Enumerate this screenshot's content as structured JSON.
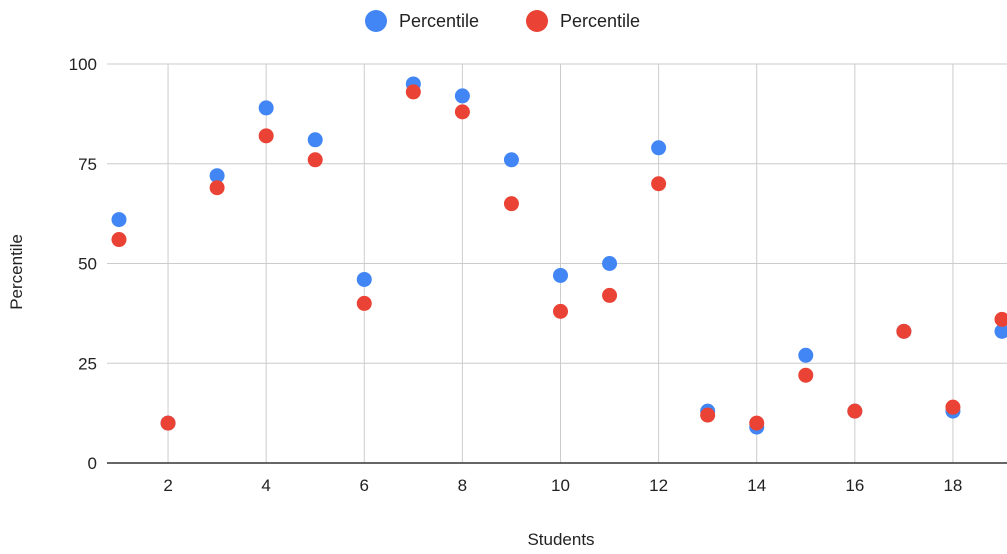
{
  "chart_data": {
    "type": "scatter",
    "title": "",
    "xlabel": "Students",
    "ylabel": "Percentile",
    "xlim": [
      1,
      19
    ],
    "ylim": [
      0,
      100
    ],
    "x_ticks": [
      2,
      4,
      6,
      8,
      10,
      12,
      14,
      16,
      18
    ],
    "y_ticks": [
      0,
      25,
      50,
      75,
      100
    ],
    "grid": true,
    "legend_position": "top-center",
    "series": [
      {
        "name": "Percentile",
        "color": "#4285f4",
        "points": [
          {
            "x": 1,
            "y": 61
          },
          {
            "x": 2,
            "y": 10
          },
          {
            "x": 3,
            "y": 72
          },
          {
            "x": 4,
            "y": 89
          },
          {
            "x": 5,
            "y": 81
          },
          {
            "x": 6,
            "y": 46
          },
          {
            "x": 7,
            "y": 95
          },
          {
            "x": 8,
            "y": 92
          },
          {
            "x": 9,
            "y": 76
          },
          {
            "x": 10,
            "y": 47
          },
          {
            "x": 11,
            "y": 50
          },
          {
            "x": 12,
            "y": 79
          },
          {
            "x": 13,
            "y": 13
          },
          {
            "x": 14,
            "y": 9
          },
          {
            "x": 15,
            "y": 27
          },
          {
            "x": 16,
            "y": 13
          },
          {
            "x": 17,
            "y": 33
          },
          {
            "x": 18,
            "y": 13
          },
          {
            "x": 19,
            "y": 33
          }
        ]
      },
      {
        "name": "Percentile",
        "color": "#ea4335",
        "points": [
          {
            "x": 1,
            "y": 56
          },
          {
            "x": 2,
            "y": 10
          },
          {
            "x": 3,
            "y": 69
          },
          {
            "x": 4,
            "y": 82
          },
          {
            "x": 5,
            "y": 76
          },
          {
            "x": 6,
            "y": 40
          },
          {
            "x": 7,
            "y": 93
          },
          {
            "x": 8,
            "y": 88
          },
          {
            "x": 9,
            "y": 65
          },
          {
            "x": 10,
            "y": 38
          },
          {
            "x": 11,
            "y": 42
          },
          {
            "x": 12,
            "y": 70
          },
          {
            "x": 13,
            "y": 12
          },
          {
            "x": 14,
            "y": 10
          },
          {
            "x": 15,
            "y": 22
          },
          {
            "x": 16,
            "y": 13
          },
          {
            "x": 17,
            "y": 33
          },
          {
            "x": 18,
            "y": 14
          },
          {
            "x": 19,
            "y": 36
          }
        ]
      }
    ]
  }
}
